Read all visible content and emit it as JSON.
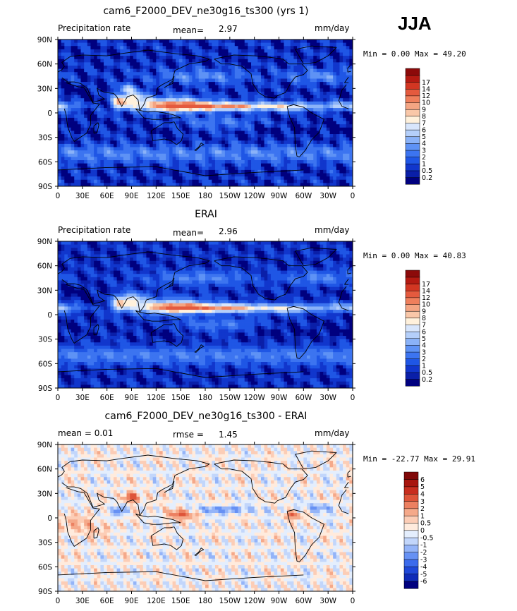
{
  "header": {
    "season": "JJA"
  },
  "axes": {
    "lon_ticks": [
      "0",
      "30E",
      "60E",
      "90E",
      "120E",
      "150E",
      "180",
      "150W",
      "120W",
      "90W",
      "60W",
      "30W",
      "0"
    ],
    "lat_ticks": [
      "90N",
      "60N",
      "30N",
      "0",
      "30S",
      "60S",
      "90S"
    ]
  },
  "colors": {
    "precip": [
      "#00007F",
      "#0A1FA8",
      "#1136CC",
      "#1F56E5",
      "#3C74F0",
      "#5E92F5",
      "#8AB2F8",
      "#B4CFFA",
      "#D8E6FC",
      "#FFF1DC",
      "#F9C7A8",
      "#F4A583",
      "#EF7F5C",
      "#E45A3E",
      "#D23622",
      "#B41A12",
      "#8C0A0A"
    ],
    "diff": [
      "#00007F",
      "#0F2BB8",
      "#1F48D9",
      "#3C6BEC",
      "#6691F4",
      "#94B4F8",
      "#C2D6FB",
      "#E4EEFD",
      "#FFEBDD",
      "#FCCDB6",
      "#F5A98A",
      "#EC8061",
      "#DE5439",
      "#C82D1E",
      "#A8150E",
      "#800808"
    ]
  },
  "panels": [
    {
      "title": "cam6_F2000_DEV_ne30g16_ts300 (yrs 1)",
      "left_label": "Precipitation rate",
      "center_label": "mean=",
      "center_value": "2.97",
      "units": "mm/day",
      "minmax_label": "Min =   0.00 Max =  49.20",
      "colorbar_labels": [
        "0.2",
        "0.5",
        "1",
        "2",
        "3",
        "4",
        "5",
        "6",
        "7",
        "8",
        "9",
        "10",
        "12",
        "14",
        "17"
      ],
      "map_pattern": "model",
      "colormap": "precip"
    },
    {
      "title": "ERAI",
      "left_label": "Precipitation rate",
      "center_label": "mean=",
      "center_value": "2.96",
      "units": "mm/day",
      "minmax_label": "Min =   0.00 Max =  40.83",
      "colorbar_labels": [
        "0.2",
        "0.5",
        "1",
        "2",
        "3",
        "4",
        "5",
        "6",
        "7",
        "8",
        "9",
        "10",
        "12",
        "14",
        "17"
      ],
      "map_pattern": "obs",
      "colormap": "precip"
    },
    {
      "title": "cam6_F2000_DEV_ne30g16_ts300 - ERAI",
      "left_label": "mean =    0.01",
      "center_label": "rmse =",
      "center_value": "1.45",
      "units": "mm/day",
      "minmax_label": "Min = -22.77 Max =  29.91",
      "colorbar_labels": [
        "-6",
        "-5",
        "-4",
        "-3",
        "-2",
        "-1",
        "-0.5",
        "0",
        "0.5",
        "1",
        "2",
        "3",
        "4",
        "5",
        "6"
      ],
      "map_pattern": "diff",
      "colormap": "diff"
    }
  ],
  "chart_data": [
    {
      "type": "heatmap",
      "title": "cam6_F2000_DEV_ne30g16_ts300 (yrs 1)",
      "variable": "Precipitation rate",
      "units": "mm/day",
      "mean": 2.97,
      "min": 0.0,
      "max": 49.2,
      "xlim": [
        0,
        360
      ],
      "ylim": [
        -90,
        90
      ],
      "colorbar_levels": [
        0.2,
        0.5,
        1,
        2,
        3,
        4,
        5,
        6,
        7,
        8,
        9,
        10,
        12,
        14,
        17
      ]
    },
    {
      "type": "heatmap",
      "title": "ERAI",
      "variable": "Precipitation rate",
      "units": "mm/day",
      "mean": 2.96,
      "min": 0.0,
      "max": 40.83,
      "xlim": [
        0,
        360
      ],
      "ylim": [
        -90,
        90
      ],
      "colorbar_levels": [
        0.2,
        0.5,
        1,
        2,
        3,
        4,
        5,
        6,
        7,
        8,
        9,
        10,
        12,
        14,
        17
      ]
    },
    {
      "type": "heatmap",
      "title": "cam6_F2000_DEV_ne30g16_ts300 - ERAI",
      "units": "mm/day",
      "mean": 0.01,
      "rmse": 1.45,
      "min": -22.77,
      "max": 29.91,
      "xlim": [
        0,
        360
      ],
      "ylim": [
        -90,
        90
      ],
      "colorbar_levels": [
        -6,
        -5,
        -4,
        -3,
        -2,
        -1,
        -0.5,
        0,
        0.5,
        1,
        2,
        3,
        4,
        5,
        6
      ]
    }
  ]
}
